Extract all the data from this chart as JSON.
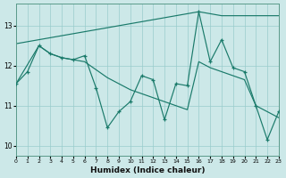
{
  "xlabel": "Humidex (Indice chaleur)",
  "bg_color": "#cce8e8",
  "line_color": "#1a7a6a",
  "grid_color": "#99cccc",
  "xlim": [
    0,
    23
  ],
  "ylim": [
    9.75,
    13.55
  ],
  "xticks": [
    0,
    1,
    2,
    3,
    4,
    5,
    6,
    7,
    8,
    9,
    10,
    11,
    12,
    13,
    14,
    15,
    16,
    17,
    18,
    19,
    20,
    21,
    22,
    23
  ],
  "yticks": [
    10,
    11,
    12,
    13
  ],
  "zigzag_x": [
    0,
    1,
    2,
    3,
    4,
    5,
    6,
    7,
    8,
    9,
    10,
    11,
    12,
    13,
    14,
    15,
    16,
    17,
    18,
    19,
    20,
    21,
    22,
    23
  ],
  "zigzag_y": [
    11.55,
    11.85,
    12.5,
    12.3,
    12.2,
    12.15,
    12.25,
    11.45,
    10.45,
    10.85,
    11.1,
    11.75,
    11.65,
    10.65,
    11.55,
    11.5,
    13.35,
    12.1,
    12.65,
    11.95,
    11.85,
    11.0,
    10.15,
    10.85
  ],
  "upper_x": [
    0,
    15,
    16,
    18,
    23
  ],
  "upper_y": [
    12.55,
    13.3,
    13.35,
    13.25,
    13.25
  ],
  "lower_x": [
    0,
    2,
    3,
    4,
    5,
    6,
    7,
    8,
    9,
    10,
    11,
    12,
    13,
    14,
    15,
    16,
    17,
    18,
    19,
    20,
    21,
    22,
    23
  ],
  "lower_y": [
    11.55,
    12.5,
    12.3,
    12.2,
    12.15,
    12.1,
    11.9,
    11.7,
    11.55,
    11.4,
    11.3,
    11.2,
    11.1,
    11.0,
    10.9,
    12.1,
    11.95,
    11.85,
    11.75,
    11.65,
    11.0,
    10.85,
    10.7
  ]
}
